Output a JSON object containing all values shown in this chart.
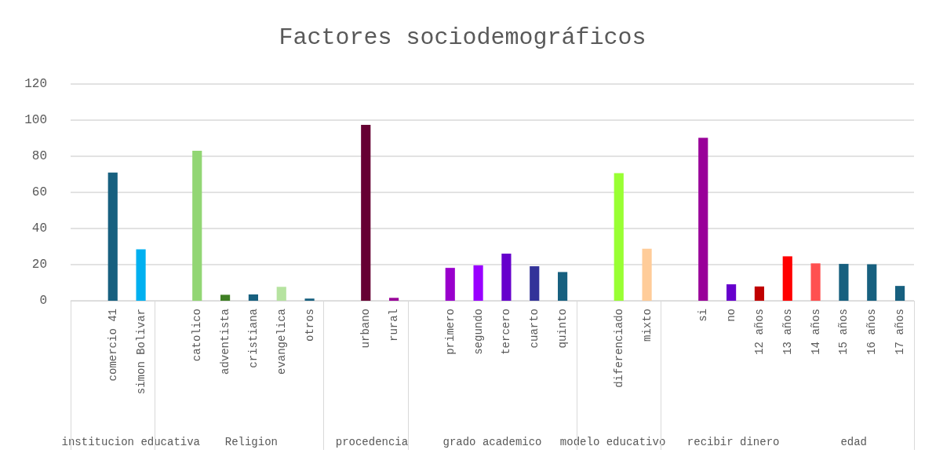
{
  "chart_data": {
    "type": "bar",
    "title": "Factores sociodemográficos",
    "categories": [
      null,
      "comercio 41",
      "simon Bolivar",
      null,
      "catolico",
      "adventista",
      "cristiana",
      "evangelica",
      "otros",
      null,
      "urbano",
      "rural",
      null,
      "primero",
      "segundo",
      "tercero",
      "cuarto",
      "quinto",
      null,
      "diferenciado",
      "mixto",
      null,
      "si",
      "no",
      "12 años",
      "13 años",
      "14 años",
      "15 años",
      "16 años",
      "17 años"
    ],
    "values": [
      null,
      71,
      28.5,
      null,
      83,
      3.3,
      3.5,
      7.7,
      1.2,
      null,
      97.4,
      1.6,
      null,
      18.2,
      19.6,
      26.1,
      19.1,
      15.9,
      null,
      70.7,
      28.8,
      null,
      90.2,
      9.1,
      7.9,
      24.6,
      20.7,
      20.4,
      20.2,
      8.2
    ],
    "colors": [
      null,
      "#17607f",
      "#00b0f0",
      null,
      "#92d674",
      "#3f7f24",
      "#17607f",
      "#b6e3a0",
      "#17607f",
      null,
      "#660033",
      "#990099",
      null,
      "#9900cc",
      "#9900ff",
      "#6600cc",
      "#333399",
      "#17607f",
      null,
      "#99ff33",
      "#ffcc99",
      null,
      "#990099",
      "#6600cc",
      "#c00000",
      "#ff0000",
      "#ff5050",
      "#17607f",
      "#17607f",
      "#17607f"
    ],
    "ylim": [
      0,
      120
    ],
    "yticks": [
      0,
      20,
      40,
      60,
      80,
      100,
      120
    ],
    "grid": "y",
    "annotations": [
      "institucion educativa",
      "Religion",
      "procedencia",
      "grado academico",
      "modelo educativo",
      "recibir dinero",
      "edad"
    ]
  }
}
